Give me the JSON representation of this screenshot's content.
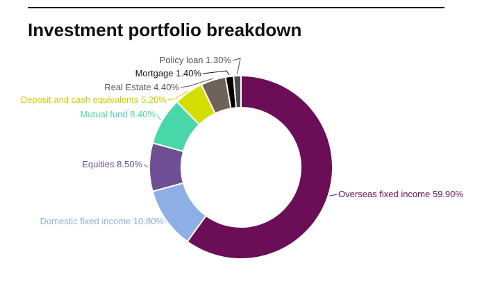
{
  "title": "Investment portfolio breakdown",
  "chart_data": {
    "type": "pie",
    "title": "Investment portfolio breakdown",
    "donut": true,
    "slices": [
      {
        "label": "Overseas fixed income",
        "value": 59.9,
        "display": "59.90%",
        "color": "#6b0d57"
      },
      {
        "label": "Domestic fixed income",
        "value": 10.8,
        "display": "10.80%",
        "color": "#8eaee6"
      },
      {
        "label": "Equities",
        "value": 8.5,
        "display": "8.50%",
        "color": "#6f4f94"
      },
      {
        "label": "Mutual fund",
        "value": 8.4,
        "display": "8.40%",
        "color": "#47d7a9"
      },
      {
        "label": "Deposit and cash equivalents",
        "value": 5.2,
        "display": "5.20%",
        "color": "#d4dd00"
      },
      {
        "label": "Real Estate",
        "value": 4.4,
        "display": "4.40%",
        "color": "#6e6259"
      },
      {
        "label": "Mortgage",
        "value": 1.4,
        "display": "1.40%",
        "color": "#000000"
      },
      {
        "label": "Policy loan",
        "value": 1.3,
        "display": "1.30%",
        "color": "#4d4d4d"
      }
    ]
  }
}
